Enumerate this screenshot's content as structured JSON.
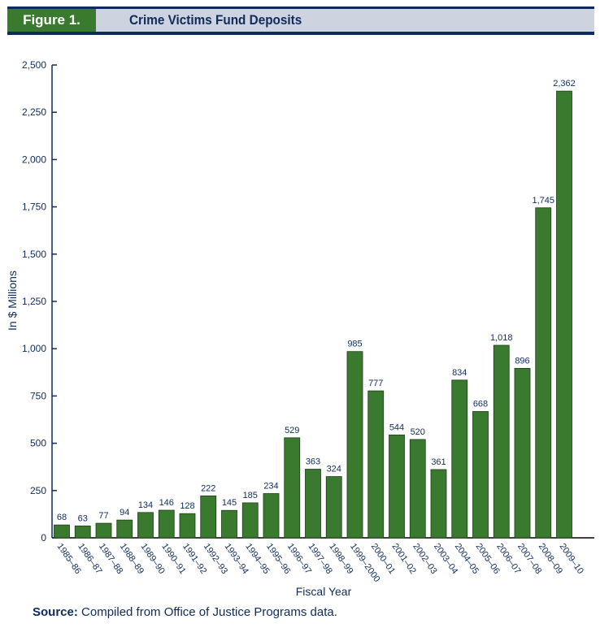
{
  "header": {
    "figure_label": "Figure 1.",
    "title": "Crime Victims Fund Deposits"
  },
  "source": {
    "label": "Source:",
    "text": " Compiled from Office of Justice Programs data."
  },
  "colors": {
    "bar": "#3a7a2e",
    "text": "#0f2a5c",
    "header_bg": "#cdd4df"
  },
  "chart_data": {
    "type": "bar",
    "title": "Crime Victims Fund Deposits",
    "xlabel": "Fiscal Year",
    "ylabel": "In $ Millions",
    "ylim": [
      0,
      2500
    ],
    "yticks": [
      0,
      250,
      500,
      750,
      1000,
      1250,
      1500,
      1750,
      2000,
      2250,
      2500
    ],
    "ytick_labels": [
      "0",
      "250",
      "500",
      "750",
      "1,000",
      "1,250",
      "1,500",
      "1,750",
      "2,000",
      "2,250",
      "2,500"
    ],
    "grid": false,
    "categories": [
      "1985–86",
      "1986–87",
      "1987–88",
      "1988–89",
      "1989–90",
      "1990–91",
      "1991–92",
      "1992–93",
      "1993–94",
      "1994–95",
      "1995–96",
      "1996–97",
      "1997–98",
      "1998–99",
      "1999–2000",
      "2000–01",
      "2001–02",
      "2002–03",
      "2003–04",
      "2004–05",
      "2005–06",
      "2006–07",
      "2007–08",
      "2008–09",
      "2009–10"
    ],
    "values": [
      68,
      63,
      77,
      94,
      134,
      146,
      128,
      222,
      145,
      185,
      234,
      529,
      363,
      324,
      985,
      777,
      544,
      520,
      361,
      834,
      668,
      1018,
      896,
      1745,
      2362
    ],
    "value_labels": [
      "68",
      "63",
      "77",
      "94",
      "134",
      "146",
      "128",
      "222",
      "145",
      "185",
      "234",
      "529",
      "363",
      "324",
      "985",
      "777",
      "544",
      "520",
      "361",
      "834",
      "668",
      "1,018",
      "896",
      "1,745",
      "2,362"
    ]
  }
}
